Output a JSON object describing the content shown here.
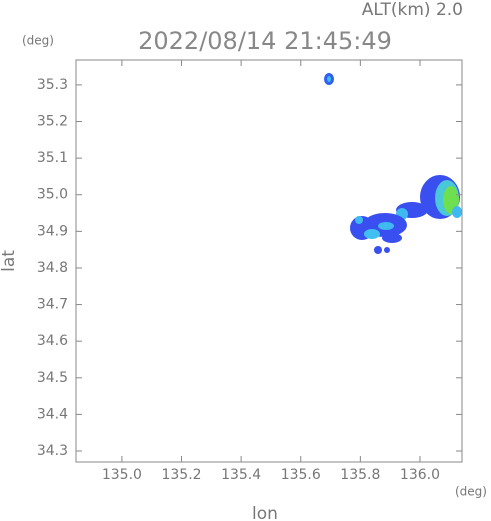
{
  "chart_data": {
    "type": "map",
    "title": "2022/08/14 21:45:49",
    "subtitle": "ALT(km) 2.0",
    "x_label": "lon",
    "y_label": "lat",
    "x_unit": "(deg)",
    "y_unit": "(deg)",
    "xlim": [
      134.846,
      136.141
    ],
    "ylim": [
      34.27,
      35.368
    ],
    "xticks": [
      {
        "value": 135.0,
        "label": "135.0"
      },
      135.2,
      135.4,
      135.6,
      135.8,
      {
        "value": 136.0,
        "label": "136.0"
      }
    ],
    "yticks": [
      34.3,
      34.4,
      34.5,
      34.6,
      34.7,
      34.8,
      34.9,
      {
        "value": 35.0,
        "label": "35.0"
      },
      35.1,
      35.2,
      35.3
    ]
  }
}
